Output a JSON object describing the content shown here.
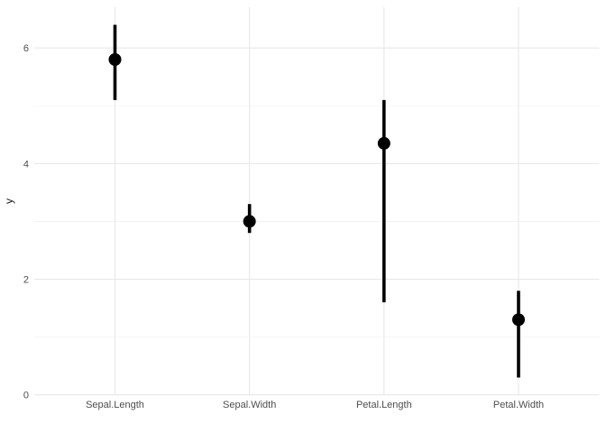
{
  "chart_data": {
    "type": "pointrange",
    "title": "",
    "xlabel": "",
    "ylabel": "y",
    "categories": [
      "Sepal.Length",
      "Sepal.Width",
      "Petal.Length",
      "Petal.Width"
    ],
    "points": [
      {
        "category": "Sepal.Length",
        "y": 5.8,
        "ymin": 5.1,
        "ymax": 6.4
      },
      {
        "category": "Sepal.Width",
        "y": 3.0,
        "ymin": 2.8,
        "ymax": 3.3
      },
      {
        "category": "Petal.Length",
        "y": 4.35,
        "ymin": 1.6,
        "ymax": 5.1
      },
      {
        "category": "Petal.Width",
        "y": 1.3,
        "ymin": 0.3,
        "ymax": 1.8
      }
    ],
    "y_axis": {
      "label": "y",
      "ticks": [
        0,
        2,
        4,
        6
      ],
      "tick_labels": [
        "0",
        "2",
        "4",
        "6"
      ],
      "minor_ticks": [
        1,
        3,
        5
      ],
      "range": [
        -0.005,
        6.705
      ]
    },
    "x_axis": {
      "label": "",
      "tick_labels": [
        "Sepal.Length",
        "Sepal.Width",
        "Petal.Length",
        "Petal.Width"
      ]
    },
    "legend": "none",
    "grid": true,
    "style": {
      "background": "#FFFFFF",
      "point_color": "#000000",
      "range_color": "#000000",
      "major_grid_color": "#E8E8E8",
      "minor_grid_color": "#F3F3F3",
      "axis_text_color": "#4D4D4D",
      "axis_title_color": "#1A1A1A",
      "point_radius": 7,
      "range_width": 3.6
    }
  }
}
